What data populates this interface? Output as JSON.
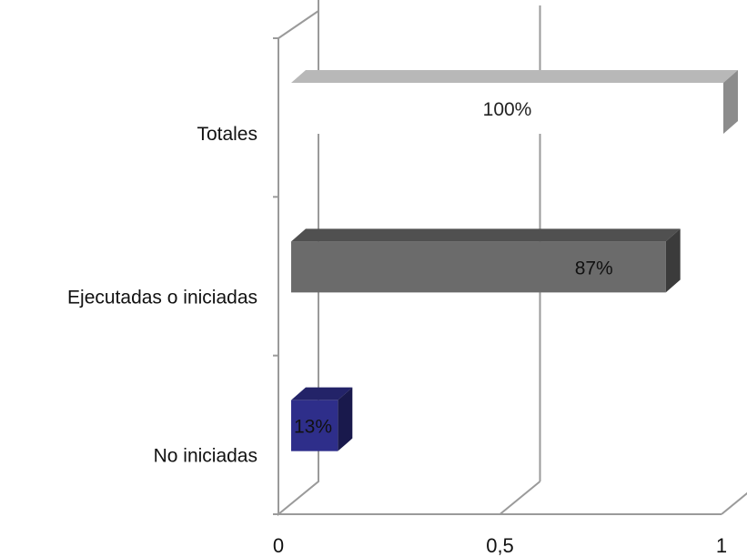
{
  "chart_data": {
    "type": "bar",
    "orientation": "horizontal",
    "three_d": true,
    "categories": [
      "Totales",
      "Ejecutadas o iniciadas",
      "No iniciadas"
    ],
    "values": [
      1.0,
      0.87,
      0.13
    ],
    "data_labels": [
      "100%",
      "87%",
      "13%"
    ],
    "bar_colors": [
      "#ffffff",
      "#6b6b6b",
      "#2e2e8a"
    ],
    "xticks": [
      "0",
      "0,5",
      "1"
    ],
    "xlim": [
      0,
      1
    ],
    "grid": true,
    "title": "",
    "xlabel": "",
    "ylabel": ""
  }
}
